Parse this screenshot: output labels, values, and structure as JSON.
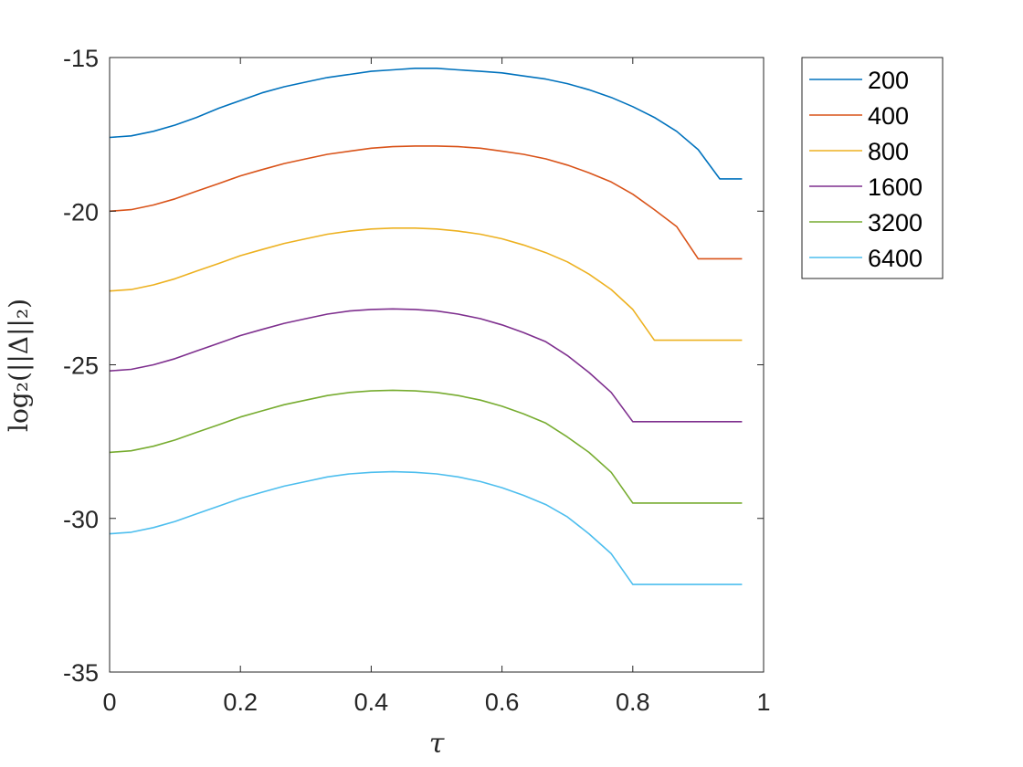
{
  "chart_data": {
    "type": "line",
    "title": "",
    "xlabel": "τ",
    "ylabel": "log₂(||Δ||₂)",
    "xlim": [
      0,
      1
    ],
    "ylim": [
      -35,
      -15
    ],
    "xticks": [
      0,
      0.2,
      0.4,
      0.6,
      0.8,
      1
    ],
    "xtick_labels": [
      "0",
      "0.2",
      "0.4",
      "0.6",
      "0.8",
      "1"
    ],
    "yticks": [
      -15,
      -20,
      -25,
      -30,
      -35
    ],
    "ytick_labels": [
      "-15",
      "-20",
      "-25",
      "-30",
      "-35"
    ],
    "grid": false,
    "legend_position": "outside-top-right",
    "x": [
      0,
      0.033,
      0.067,
      0.1,
      0.133,
      0.167,
      0.2,
      0.233,
      0.267,
      0.3,
      0.333,
      0.367,
      0.4,
      0.433,
      0.467,
      0.5,
      0.533,
      0.567,
      0.6,
      0.633,
      0.667,
      0.7,
      0.733,
      0.767,
      0.8,
      0.833,
      0.867,
      0.9,
      0.933,
      0.967
    ],
    "series": [
      {
        "name": "200",
        "color": "#0072BD",
        "values": [
          -17.6,
          -17.55,
          -17.4,
          -17.2,
          -16.95,
          -16.65,
          -16.4,
          -16.15,
          -15.95,
          -15.8,
          -15.65,
          -15.55,
          -15.45,
          -15.4,
          -15.35,
          -15.35,
          -15.4,
          -15.45,
          -15.5,
          -15.6,
          -15.7,
          -15.85,
          -16.05,
          -16.3,
          -16.6,
          -16.95,
          -17.4,
          -18.0,
          -18.95,
          -18.95
        ]
      },
      {
        "name": "400",
        "color": "#D95319",
        "values": [
          -20.0,
          -19.95,
          -19.8,
          -19.6,
          -19.35,
          -19.1,
          -18.85,
          -18.65,
          -18.45,
          -18.3,
          -18.15,
          -18.05,
          -17.95,
          -17.9,
          -17.88,
          -17.88,
          -17.9,
          -17.95,
          -18.05,
          -18.15,
          -18.3,
          -18.5,
          -18.75,
          -19.05,
          -19.45,
          -19.95,
          -20.5,
          -21.55,
          -21.55,
          -21.55
        ]
      },
      {
        "name": "800",
        "color": "#EDB120",
        "values": [
          -22.6,
          -22.55,
          -22.4,
          -22.2,
          -21.95,
          -21.7,
          -21.45,
          -21.25,
          -21.05,
          -20.9,
          -20.75,
          -20.65,
          -20.58,
          -20.55,
          -20.55,
          -20.58,
          -20.65,
          -20.75,
          -20.9,
          -21.1,
          -21.35,
          -21.65,
          -22.05,
          -22.55,
          -23.2,
          -24.2,
          -24.2,
          -24.2,
          -24.2,
          -24.2
        ]
      },
      {
        "name": "1600",
        "color": "#7E2F8E",
        "values": [
          -25.2,
          -25.15,
          -25.0,
          -24.8,
          -24.55,
          -24.3,
          -24.05,
          -23.85,
          -23.65,
          -23.5,
          -23.35,
          -23.25,
          -23.2,
          -23.18,
          -23.2,
          -23.25,
          -23.35,
          -23.5,
          -23.7,
          -23.95,
          -24.25,
          -24.7,
          -25.25,
          -25.9,
          -26.85,
          -26.85,
          -26.85,
          -26.85,
          -26.85,
          -26.85
        ]
      },
      {
        "name": "3200",
        "color": "#77AC30",
        "values": [
          -27.85,
          -27.8,
          -27.65,
          -27.45,
          -27.2,
          -26.95,
          -26.7,
          -26.5,
          -26.3,
          -26.15,
          -26.0,
          -25.9,
          -25.85,
          -25.83,
          -25.85,
          -25.9,
          -26.0,
          -26.15,
          -26.35,
          -26.6,
          -26.9,
          -27.35,
          -27.85,
          -28.5,
          -29.5,
          -29.5,
          -29.5,
          -29.5,
          -29.5,
          -29.5
        ]
      },
      {
        "name": "6400",
        "color": "#4DBEEE",
        "values": [
          -30.5,
          -30.45,
          -30.3,
          -30.1,
          -29.85,
          -29.6,
          -29.35,
          -29.15,
          -28.95,
          -28.8,
          -28.65,
          -28.55,
          -28.5,
          -28.48,
          -28.5,
          -28.55,
          -28.65,
          -28.8,
          -29.0,
          -29.25,
          -29.55,
          -29.95,
          -30.5,
          -31.15,
          -32.15,
          -32.15,
          -32.15,
          -32.15,
          -32.15,
          -32.15
        ]
      }
    ]
  }
}
